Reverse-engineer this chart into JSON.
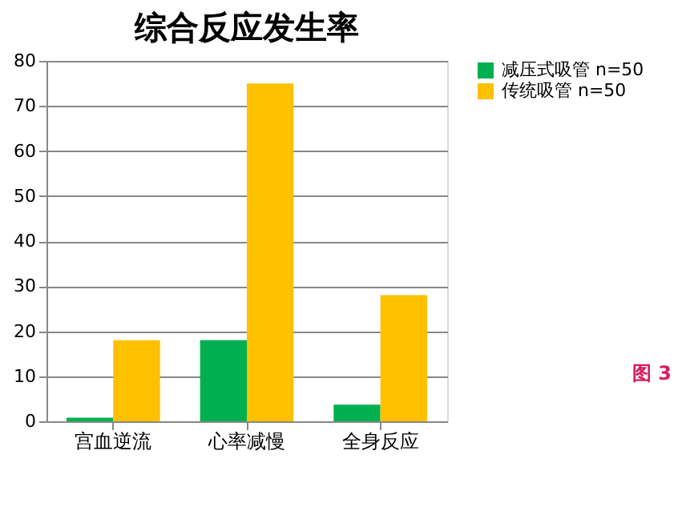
{
  "chart_data": {
    "type": "bar",
    "title": "综合反应发生率",
    "categories": [
      "宫血逆流",
      "心率减慢",
      "全身反应"
    ],
    "series": [
      {
        "name": "减压式吸管 n=50",
        "color": "#00b050",
        "values": [
          0.8,
          18,
          3.7
        ]
      },
      {
        "name": "传统吸管 n=50",
        "color": "#ffc000",
        "values": [
          18,
          75,
          28
        ]
      }
    ],
    "ylim": [
      0,
      80
    ],
    "yticks": [
      0,
      10,
      20,
      30,
      40,
      50,
      60,
      70,
      80
    ],
    "grid": "y",
    "legend": "right",
    "annotations": [
      "图 3"
    ]
  }
}
